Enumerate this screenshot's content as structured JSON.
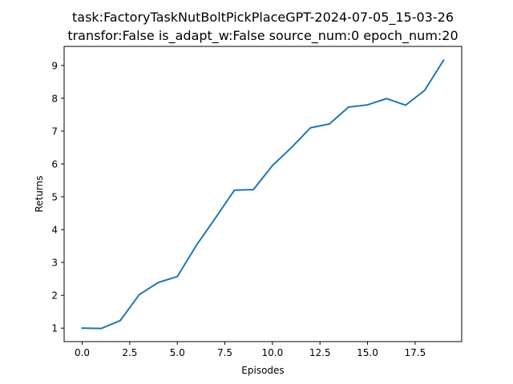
{
  "chart_data": {
    "type": "line",
    "title": "task:FactoryTaskNutBoltPickPlaceGPT-2024-07-05_15-03-26",
    "subtitle": "transfor:False  is_adapt_w:False source_num:0   epoch_num:20",
    "xlabel": "Episodes",
    "ylabel": "Returns",
    "xlim": [
      -0.95,
      19.95
    ],
    "ylim": [
      0.59,
      9.58
    ],
    "xticks": [
      0.0,
      2.5,
      5.0,
      7.5,
      10.0,
      12.5,
      15.0,
      17.5
    ],
    "xtick_labels": [
      "0.0",
      "2.5",
      "5.0",
      "7.5",
      "10.0",
      "12.5",
      "15.0",
      "17.5"
    ],
    "yticks": [
      1,
      2,
      3,
      4,
      5,
      6,
      7,
      8,
      9
    ],
    "ytick_labels": [
      "1",
      "2",
      "3",
      "4",
      "5",
      "6",
      "7",
      "8",
      "9"
    ],
    "grid": false,
    "series": [
      {
        "color": "#1f77b4",
        "x": [
          0,
          1,
          2,
          3,
          4,
          5,
          6,
          7,
          8,
          9,
          10,
          11,
          12,
          13,
          14,
          15,
          16,
          17,
          18,
          19
        ],
        "values": [
          1.0,
          0.99,
          1.23,
          2.02,
          2.39,
          2.57,
          3.52,
          4.35,
          5.2,
          5.22,
          5.95,
          6.5,
          7.1,
          7.22,
          7.73,
          7.8,
          7.99,
          7.79,
          8.24,
          9.16
        ]
      }
    ]
  }
}
